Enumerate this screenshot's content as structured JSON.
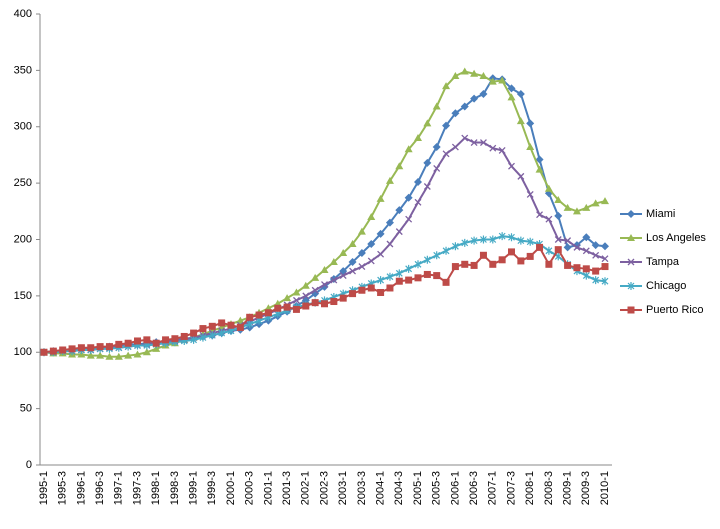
{
  "chart_data": {
    "type": "line",
    "categories": [
      "1995-1",
      null,
      "1995-3",
      null,
      "1996-1",
      null,
      "1996-3",
      null,
      "1997-1",
      null,
      "1997-3",
      null,
      "1998-1",
      null,
      "1998-3",
      null,
      "1999-1",
      null,
      "1999-3",
      null,
      "2000-1",
      null,
      "2000-3",
      null,
      "2001-1",
      null,
      "2001-3",
      null,
      "2002-1",
      null,
      "2002-3",
      null,
      "2003-1",
      null,
      "2003-3",
      null,
      "2004-1",
      null,
      "2004-3",
      null,
      "2005-1",
      null,
      "2005-3",
      null,
      "2006-1",
      null,
      "2006-3",
      null,
      "2007-1",
      null,
      "2007-3",
      null,
      "2008-1",
      null,
      "2008-3",
      null,
      "2009-1",
      null,
      "2009-3",
      null,
      "2010-1"
    ],
    "series": [
      {
        "name": "Miami",
        "color": "#4a7ebb",
        "marker": "diamond",
        "values": [
          100,
          101,
          101,
          102,
          103,
          103,
          104,
          105,
          106,
          107,
          107,
          108,
          109,
          110,
          111,
          112,
          113,
          114,
          115,
          117,
          119,
          120,
          122,
          125,
          128,
          132,
          136,
          141,
          146,
          152,
          158,
          165,
          172,
          180,
          188,
          196,
          205,
          215,
          226,
          237,
          251,
          268,
          282,
          301,
          312,
          318,
          325,
          329,
          343,
          342,
          334,
          329,
          303,
          271,
          241,
          221,
          193,
          195,
          202,
          195,
          194
        ]
      },
      {
        "name": "Los Angeles",
        "color": "#98b954",
        "marker": "triangle",
        "values": [
          100,
          99,
          99,
          98,
          98,
          97,
          97,
          96,
          96,
          97,
          98,
          100,
          103,
          106,
          108,
          111,
          113,
          116,
          119,
          122,
          125,
          128,
          131,
          135,
          139,
          143,
          148,
          153,
          159,
          166,
          173,
          180,
          188,
          196,
          207,
          220,
          236,
          252,
          265,
          280,
          290,
          303,
          318,
          336,
          345,
          349,
          347,
          345,
          340,
          341,
          326,
          305,
          282,
          262,
          245,
          235,
          228,
          225,
          228,
          232,
          234
        ]
      },
      {
        "name": "Tampa",
        "color": "#7d60a0",
        "marker": "x",
        "values": [
          100,
          100,
          101,
          101,
          102,
          102,
          103,
          104,
          104,
          105,
          106,
          107,
          108,
          109,
          110,
          111,
          113,
          115,
          117,
          119,
          121,
          124,
          127,
          131,
          134,
          138,
          142,
          146,
          150,
          155,
          160,
          164,
          168,
          172,
          176,
          181,
          187,
          196,
          207,
          218,
          233,
          247,
          263,
          276,
          282,
          290,
          286,
          286,
          281,
          279,
          265,
          256,
          240,
          222,
          218,
          200,
          199,
          193,
          190,
          186,
          183
        ]
      },
      {
        "name": "Chicago",
        "color": "#46aac5",
        "marker": "star",
        "values": [
          100,
          100,
          101,
          101,
          102,
          102,
          103,
          103,
          104,
          105,
          106,
          106,
          107,
          108,
          109,
          110,
          111,
          113,
          115,
          117,
          119,
          122,
          125,
          128,
          131,
          134,
          137,
          140,
          142,
          144,
          146,
          149,
          152,
          155,
          158,
          161,
          164,
          167,
          170,
          174,
          178,
          182,
          186,
          190,
          194,
          197,
          199,
          200,
          200,
          203,
          202,
          199,
          198,
          196,
          190,
          185,
          178,
          172,
          168,
          164,
          163
        ]
      },
      {
        "name": "Puerto Rico",
        "color": "#be4b48",
        "marker": "square",
        "values": [
          100,
          101,
          102,
          103,
          104,
          104,
          105,
          105,
          107,
          108,
          110,
          111,
          108,
          111,
          112,
          114,
          117,
          121,
          123,
          126,
          124,
          122,
          131,
          133,
          135,
          139,
          140,
          138,
          141,
          144,
          143,
          145,
          148,
          152,
          155,
          157,
          153,
          157,
          163,
          164,
          166,
          169,
          168,
          162,
          176,
          178,
          177,
          186,
          178,
          182,
          189,
          181,
          185,
          193,
          178,
          191,
          177,
          175,
          174,
          172,
          176
        ]
      }
    ],
    "ylim": [
      0,
      400
    ],
    "yticks": [
      0,
      50,
      100,
      150,
      200,
      250,
      300,
      350,
      400
    ],
    "grid": false,
    "legend": "right"
  }
}
